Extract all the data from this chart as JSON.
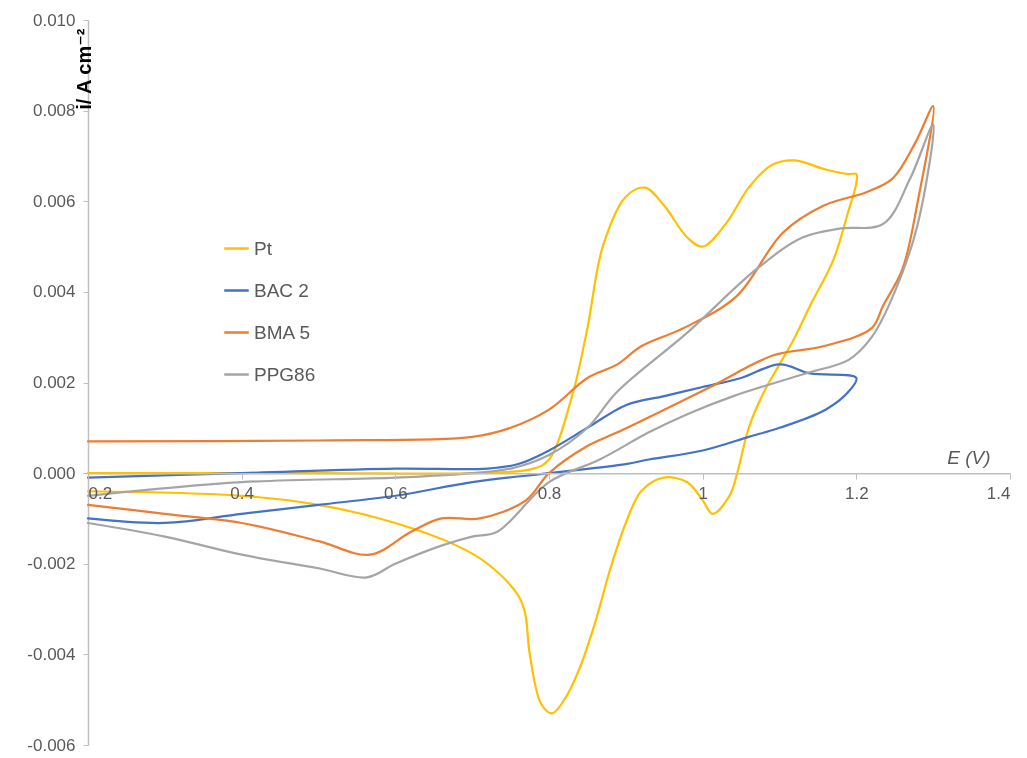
{
  "chart_data": {
    "type": "line",
    "xlabel": "E (V)",
    "ylabel": "i/ A cm⁻²",
    "xlim": [
      0.2,
      1.4
    ],
    "xticks": [
      0.2,
      0.4,
      0.6,
      0.8,
      1,
      1.2,
      1.4
    ],
    "ylim": [
      -0.006,
      0.01
    ],
    "yticks": [
      {
        "value": -0.006,
        "label": "-0.006"
      },
      {
        "value": -0.004,
        "label": "-0.004"
      },
      {
        "value": -0.002,
        "label": "-0.002"
      },
      {
        "value": 0,
        "label": "0.000"
      },
      {
        "value": 0.002,
        "label": "0.002"
      },
      {
        "value": 0.004,
        "label": "0.004"
      },
      {
        "value": 0.006,
        "label": "0.006"
      },
      {
        "value": 0.008,
        "label": "0.008"
      },
      {
        "value": 0.01,
        "label": "0.010"
      }
    ],
    "grid": false,
    "legend": "top left",
    "marker": "none",
    "line_style": "solid",
    "series": [
      {
        "name": "Pt",
        "color": "#ffc000",
        "x": [
          0.2,
          0.5,
          0.7,
          0.78,
          0.8,
          0.83,
          0.85,
          0.87,
          0.9,
          0.925,
          0.95,
          0.98,
          1.0,
          1.03,
          1.06,
          1.09,
          1.12,
          1.16,
          1.19,
          1.2,
          1.2,
          1.19,
          1.17,
          1.14,
          1.12,
          1.1,
          1.08,
          1.06,
          1.045,
          1.035,
          1.013,
          1.0,
          0.98,
          0.949,
          0.92,
          0.9,
          0.88,
          0.86,
          0.84,
          0.82,
          0.804,
          0.79,
          0.775,
          0.769,
          0.76,
          0.72,
          0.68,
          0.6,
          0.5,
          0.4,
          0.2
        ],
        "values": [
          0.0,
          0.0,
          0.0,
          0.0001,
          0.0003,
          0.0017,
          0.0032,
          0.005,
          0.0061,
          0.0063,
          0.0059,
          0.0052,
          0.005,
          0.0055,
          0.0063,
          0.0068,
          0.0069,
          0.0067,
          0.0066,
          0.0066,
          0.0064,
          0.0058,
          0.0047,
          0.0037,
          0.003,
          0.0024,
          0.0018,
          0.001,
          0.0,
          -0.0005,
          -0.0009,
          -0.0006,
          -0.0002,
          -0.0001,
          -0.0004,
          -0.0011,
          -0.0021,
          -0.0033,
          -0.0043,
          -0.005,
          -0.0053,
          -0.0051,
          -0.004,
          -0.0031,
          -0.0027,
          -0.002,
          -0.0016,
          -0.0011,
          -0.0007,
          -0.0005,
          -0.0004
        ]
      },
      {
        "name": "BAC 2",
        "color": "#4472c4",
        "x": [
          0.2,
          0.4,
          0.6,
          0.72,
          0.76,
          0.8,
          0.85,
          0.9,
          0.95,
          1.0,
          1.05,
          1.1,
          1.14,
          1.2,
          1.19,
          1.16,
          1.1,
          1.06,
          1.0,
          0.93,
          0.9,
          0.8,
          0.7,
          0.6,
          0.5,
          0.4,
          0.3,
          0.2
        ],
        "values": [
          -0.0001,
          0.0,
          0.0001,
          0.0001,
          0.0002,
          0.0005,
          0.001,
          0.0015,
          0.0017,
          0.0019,
          0.0021,
          0.0024,
          0.0022,
          0.0021,
          0.0018,
          0.0014,
          0.001,
          0.0008,
          0.0005,
          0.0003,
          0.0002,
          0.0,
          -0.0002,
          -0.0005,
          -0.0007,
          -0.0009,
          -0.0011,
          -0.001
        ]
      },
      {
        "name": "BMA 5",
        "color": "#ed7d31",
        "x": [
          0.2,
          0.5,
          0.7,
          0.75,
          0.8,
          0.85,
          0.889,
          0.92,
          0.975,
          1.044,
          1.104,
          1.157,
          1.213,
          1.247,
          1.277,
          1.3,
          1.28,
          1.26,
          1.235,
          1.22,
          1.157,
          1.092,
          1.01,
          0.95,
          0.889,
          0.85,
          0.8,
          0.77,
          0.71,
          0.66,
          0.62,
          0.567,
          0.5,
          0.4,
          0.3,
          0.2
        ],
        "values": [
          0.0007,
          0.00072,
          0.0008,
          0.001,
          0.0014,
          0.0021,
          0.0024,
          0.0028,
          0.0032,
          0.0039,
          0.0053,
          0.0059,
          0.0062,
          0.0065,
          0.0073,
          0.0081,
          0.006,
          0.0045,
          0.0037,
          0.0032,
          0.0028,
          0.0026,
          0.0019,
          0.0014,
          0.0009,
          0.0006,
          0.0,
          -0.0006,
          -0.001,
          -0.001,
          -0.0013,
          -0.0018,
          -0.0015,
          -0.0011,
          -0.0009,
          -0.0007
        ]
      },
      {
        "name": "PPG86",
        "color": "#a5a5a5",
        "x": [
          0.2,
          0.4,
          0.6,
          0.7,
          0.75,
          0.8,
          0.85,
          0.889,
          0.98,
          1.07,
          1.13,
          1.18,
          1.235,
          1.27,
          1.3,
          1.28,
          1.25,
          1.22,
          1.19,
          1.134,
          1.04,
          0.98,
          0.93,
          0.866,
          0.8,
          0.732,
          0.7,
          0.66,
          0.6,
          0.563,
          0.5,
          0.4,
          0.3,
          0.2
        ],
        "values": [
          -0.0005,
          -0.0002,
          -0.0001,
          0.0,
          0.0001,
          0.0004,
          0.001,
          0.0018,
          0.0031,
          0.0045,
          0.0052,
          0.0054,
          0.0055,
          0.0065,
          0.0077,
          0.0055,
          0.004,
          0.003,
          0.0025,
          0.0022,
          0.0017,
          0.0013,
          0.0009,
          0.0003,
          -0.0002,
          -0.0013,
          -0.0014,
          -0.0016,
          -0.002,
          -0.0023,
          -0.0021,
          -0.0018,
          -0.0014,
          -0.0011
        ]
      }
    ]
  }
}
